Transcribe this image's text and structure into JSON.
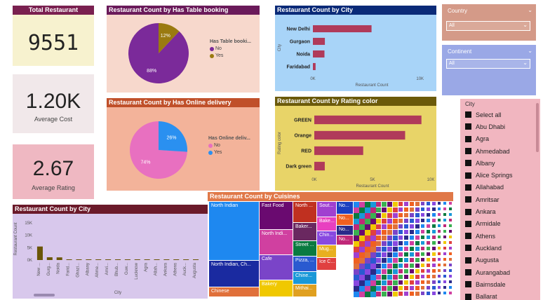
{
  "colors": {
    "kpi_title_bg": "#7a2050",
    "kpi1_bg": "#f7f2cf",
    "kpi2_bg": "#f1e8ea",
    "kpi3_bg": "#efb8c2",
    "table_booking_title": "#6a1a5a",
    "table_booking_bg": "#f7d8cc",
    "online_title": "#c0502a",
    "online_bg": "#f3b39a",
    "city_title": "#0a2a78",
    "city_bg": "#a8d4f8",
    "rating_title": "#6b5a0a",
    "rating_bg": "#e8d468",
    "bar_color": "#b03a5a",
    "country_bg": "#d49a88",
    "continent_bg": "#9aa8e6",
    "city_list_bg": "#f1b6c0",
    "bottom_city_title": "#6b1a2a",
    "bottom_city_bg": "#d8c8ec",
    "bottom_bar_color": "#6b5608",
    "cuisines_title": "#e07848"
  },
  "kpis": {
    "title": "Total Restaurant",
    "total_restaurant": "9551",
    "avg_cost_value": "1.20K",
    "avg_cost_label": "Average Cost",
    "avg_rating_value": "2.67",
    "avg_rating_label": "Average Rating"
  },
  "table_booking": {
    "title": "Restaurant Count by Has Table booking",
    "legend_title": "Has Table booki...",
    "legend": [
      {
        "label": "No",
        "color": "#7b2a9a"
      },
      {
        "label": "Yes",
        "color": "#9a7a10"
      }
    ],
    "slices": [
      {
        "label": "88%",
        "value": 88,
        "color": "#7b2a9a"
      },
      {
        "label": "12%",
        "value": 12,
        "color": "#9a7a10"
      }
    ]
  },
  "online_delivery": {
    "title": "Restaurant Count by Has Online delivery",
    "legend_title": "Has Online deliv...",
    "legend": [
      {
        "label": "No",
        "color": "#e870c0"
      },
      {
        "label": "Yes",
        "color": "#2a90f0"
      }
    ],
    "slices": [
      {
        "label": "74%",
        "value": 74,
        "color": "#e870c0"
      },
      {
        "label": "26%",
        "value": 26,
        "color": "#2a90f0"
      }
    ]
  },
  "chart_data": [
    {
      "type": "bar",
      "title": "Restaurant Count by City",
      "categories": [
        "New Delhi",
        "Gurgaon",
        "Noida",
        "Faridabad"
      ],
      "values": [
        5473,
        1118,
        1080,
        251
      ],
      "xlabel": "Restaurant Count",
      "ylabel": "City",
      "xlim": [
        0,
        11000
      ],
      "ticks": [
        "0K",
        "10K"
      ]
    },
    {
      "type": "bar",
      "title": "Restaurant Count by Rating color",
      "categories": [
        "GREEN",
        "Orange",
        "RED",
        "Dark green"
      ],
      "values": [
        9200,
        7800,
        4200,
        900
      ],
      "xlabel": "Restaurant Count",
      "ylabel": "Rating color",
      "xlim": [
        0,
        10000
      ],
      "ticks": [
        "0K",
        "5K",
        "10K"
      ]
    },
    {
      "type": "bar",
      "title": "Restaurant Count by City",
      "categories": [
        "New ...",
        "Gurg...",
        "Noida",
        "Farid...",
        "Ghazi...",
        "Albany",
        "Ahme...",
        "Amri...",
        "Bhub...",
        "Guw...",
        "Lucknow",
        "Agra",
        "Allah...",
        "Ankara",
        "Athens",
        "Auck...",
        "Augusta"
      ],
      "values": [
        5473,
        1118,
        1080,
        251,
        25,
        20,
        21,
        21,
        21,
        21,
        21,
        20,
        20,
        20,
        20,
        20,
        20
      ],
      "xlabel": "City",
      "ylabel": "Restaurant Count",
      "ylim": [
        0,
        17000
      ],
      "ticks": [
        "0K",
        "5K",
        "10K",
        "15K"
      ]
    }
  ],
  "country_slicer": {
    "title": "Country",
    "value": "All"
  },
  "continent_slicer": {
    "title": "Continent",
    "value": "All"
  },
  "city_list": {
    "title": "City",
    "items": [
      "Select all",
      "Abu Dhabi",
      "Agra",
      "Ahmedabad",
      "Albany",
      "Alice Springs",
      "Allahabad",
      "Amritsar",
      "Ankara",
      "Armidale",
      "Athens",
      "Auckland",
      "Augusta",
      "Aurangabad",
      "Bairnsdale",
      "Ballarat"
    ]
  },
  "cuisines": {
    "title": "Restaurant Count by Cuisines",
    "cells": [
      {
        "label": "North Indian",
        "color": "#1e88f0"
      },
      {
        "label": "North Indian, Ch...",
        "color": "#1a2aa0"
      },
      {
        "label": "Chinese",
        "color": "#e0703a"
      },
      {
        "label": "Fast Food",
        "color": "#6a0a70"
      },
      {
        "label": "North Indi...",
        "color": "#d040a0"
      },
      {
        "label": "Cafe",
        "color": "#7a44c8"
      },
      {
        "label": "Bakery",
        "color": "#f0c800"
      },
      {
        "label": "North ...",
        "color": "#c03020"
      },
      {
        "label": "Baker...",
        "color": "#6a2860"
      },
      {
        "label": "Street ...",
        "color": "#0a7a40"
      },
      {
        "label": "Pizza, ...",
        "color": "#2a5ad0"
      },
      {
        "label": "Chine...",
        "color": "#1a98d8"
      },
      {
        "label": "Mithai...",
        "color": "#e0a020"
      },
      {
        "label": "Sout...",
        "color": "#a040d0"
      },
      {
        "label": "Bake...",
        "color": "#e840c0"
      },
      {
        "label": "Chin...",
        "color": "#8848e0"
      },
      {
        "label": "Mug...",
        "color": "#e8b020"
      },
      {
        "label": "Ice C...",
        "color": "#e04040"
      },
      {
        "label": "No...",
        "color": "#1a40c0"
      },
      {
        "label": "No...",
        "color": "#f06020"
      },
      {
        "label": "No...",
        "color": "#2a2a8a"
      },
      {
        "label": "No...",
        "color": "#c02878"
      }
    ]
  }
}
